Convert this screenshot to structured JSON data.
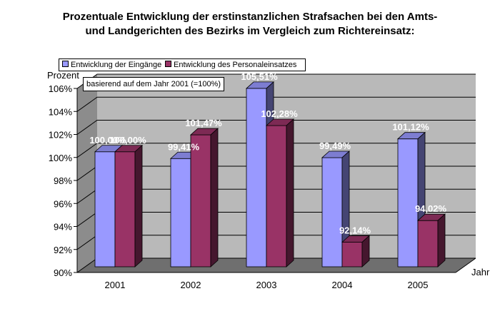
{
  "title_line1": "Prozentuale Entwicklung der erstinstanzlichen Strafsachen bei den Amts-",
  "title_line2": "und Landgerichten des Bezirks im Vergleich zum Richtereinsatz:",
  "basis_note": "basierend auf dem Jahr 2001 (=100%)",
  "colors": {
    "eingaenge": "#9999ff",
    "personal": "#993366"
  },
  "chart_data": {
    "type": "bar",
    "title": "Prozentuale Entwicklung der erstinstanzlichen Strafsachen bei den Amts- und Landgerichten des Bezirks im Vergleich zum Richtereinsatz:",
    "xlabel": "Jahr",
    "ylabel": "Prozent",
    "ylim": [
      90,
      106
    ],
    "yticks": [
      "90%",
      "92%",
      "94%",
      "96%",
      "98%",
      "100%",
      "102%",
      "104%",
      "106%"
    ],
    "categories": [
      "2001",
      "2002",
      "2003",
      "2004",
      "2005"
    ],
    "series": [
      {
        "name": "Entwicklung der Eingänge",
        "values": [
          100.0,
          99.41,
          105.51,
          99.49,
          101.12
        ],
        "labels": [
          "100,00%",
          "99,41%",
          "105,51%",
          "99,49%",
          "101,12%"
        ]
      },
      {
        "name": "Entwicklung des Personaleinsatzes",
        "values": [
          100.0,
          101.47,
          102.28,
          92.14,
          94.02
        ],
        "labels": [
          "100,00%",
          "101,47%",
          "102,28%",
          "92,14%",
          "94,02%"
        ]
      }
    ],
    "grid": true,
    "legend": "top-left",
    "style": "3d-clustered-column"
  }
}
